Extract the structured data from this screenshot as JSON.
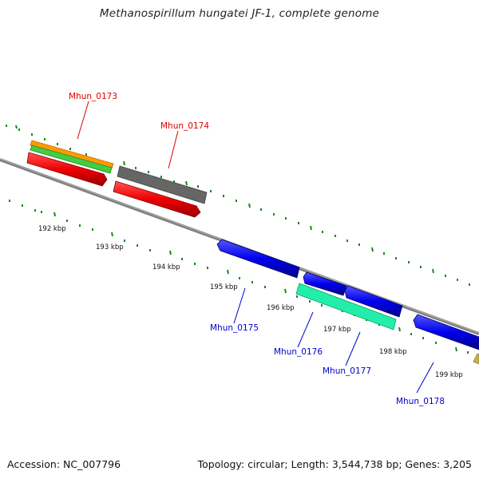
{
  "title": "Methanospirillum hungatei JF-1, complete genome",
  "footer": {
    "accession": "Accession: NC_007796",
    "summary": "Topology: circular; Length: 3,544,738 bp; Genes: 3,205"
  },
  "ticks": [
    "192 kbp",
    "193 kbp",
    "194 kbp",
    "195 kbp",
    "196 kbp",
    "197 kbp",
    "198 kbp",
    "199 kbp"
  ],
  "gene_labels": [
    {
      "text": "Mhun_0173",
      "color": "#dd0000"
    },
    {
      "text": "Mhun_0174",
      "color": "#dd0000"
    },
    {
      "text": "Mhun_0175",
      "color": "#0000cc"
    },
    {
      "text": "Mhun_0176",
      "color": "#0000cc"
    },
    {
      "text": "Mhun_0177",
      "color": "#0000cc"
    },
    {
      "text": "Mhun_0178",
      "color": "#0000cc"
    }
  ],
  "colors": {
    "backbone": "#808080",
    "tick": "#1a8a1a",
    "forward_gene": "#ee0000",
    "reverse_gene": "#0000ee",
    "orange_track": "#ff9900",
    "green_track": "#44cc44",
    "grey_track": "#666666",
    "cyan_track": "#22eeaa",
    "tan_track": "#c8b050"
  }
}
